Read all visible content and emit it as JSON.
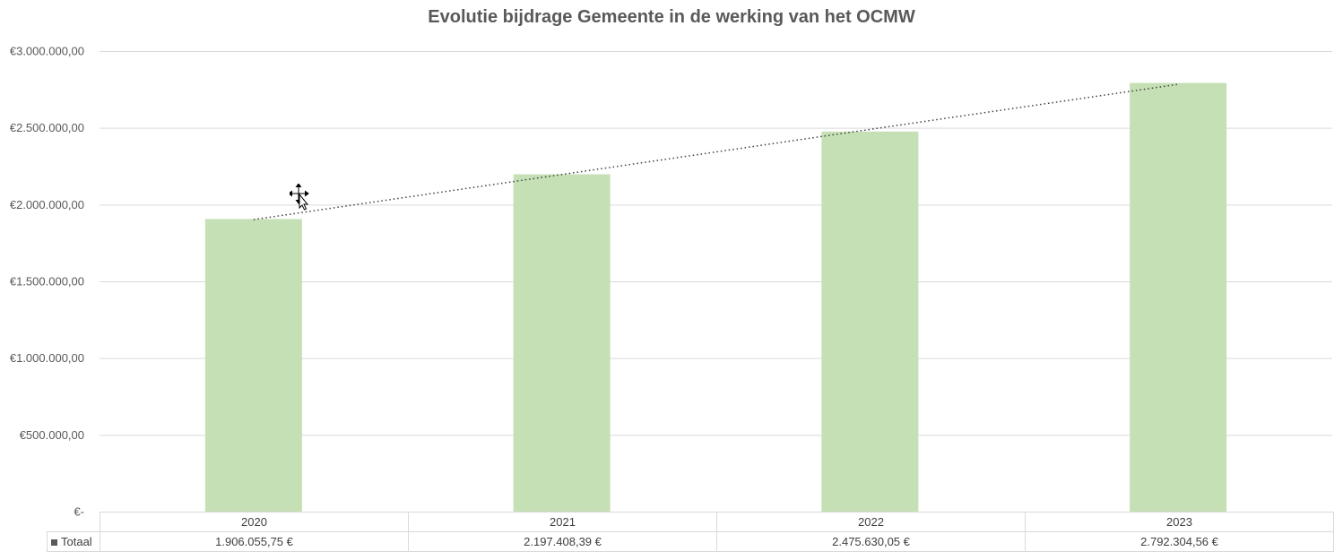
{
  "chart_data": {
    "type": "bar",
    "title": "Evolutie bijdrage Gemeente in de werking van het OCMW",
    "categories": [
      "2020",
      "2021",
      "2022",
      "2023"
    ],
    "series": [
      {
        "name": "Totaal",
        "values": [
          1906055.75,
          2197408.39,
          2475630.05,
          2792304.56
        ],
        "value_labels": [
          "1.906.055,75 €",
          "2.197.408,39 €",
          "2.475.630,05 €",
          "2.792.304,56 €"
        ],
        "color": "#c5e0b4"
      }
    ],
    "ylim": [
      0,
      3000000
    ],
    "yticks": [
      0,
      500000,
      1000000,
      1500000,
      2000000,
      2500000,
      3000000
    ],
    "ytick_labels": [
      "€-",
      "€500.000,00",
      "€1.000.000,00",
      "€1.500.000,00",
      "€2.000.000,00",
      "€2.500.000,00",
      "€3.000.000,00"
    ],
    "trendline": {
      "type": "linear",
      "style": "dotted",
      "color": "#404040"
    },
    "grid": true,
    "data_table": true,
    "legend_key_color": "#595959"
  }
}
